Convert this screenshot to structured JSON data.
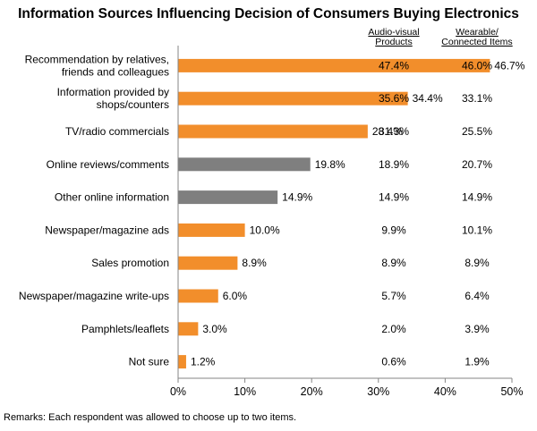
{
  "chart_data": {
    "type": "bar",
    "orientation": "horizontal",
    "title": "Information Sources Influencing Decision of Consumers Buying Electronics",
    "categories": [
      [
        "Recommendation by relatives,",
        "friends and colleagues"
      ],
      [
        "Information provided by",
        "shops/counters"
      ],
      [
        "TV/radio commercials"
      ],
      [
        "Online reviews/comments"
      ],
      [
        "Other online information"
      ],
      [
        "Newspaper/magazine ads"
      ],
      [
        "Sales promotion"
      ],
      [
        "Newspaper/magazine write-ups"
      ],
      [
        "Pamphlets/leaflets"
      ],
      [
        "Not sure"
      ]
    ],
    "values": [
      46.7,
      34.4,
      28.4,
      19.8,
      14.9,
      10.0,
      8.9,
      6.0,
      3.0,
      1.2
    ],
    "value_labels": [
      "46.7%",
      "34.4%",
      "28.4%",
      "19.8%",
      "14.9%",
      "10.0%",
      "8.9%",
      "6.0%",
      "3.0%",
      "1.2%"
    ],
    "bar_colors": [
      "#F28E2B",
      "#F28E2B",
      "#F28E2B",
      "#7F7F7F",
      "#7F7F7F",
      "#F28E2B",
      "#F28E2B",
      "#F28E2B",
      "#F28E2B",
      "#F28E2B"
    ],
    "xlim": [
      0,
      50
    ],
    "xticks": [
      0,
      10,
      20,
      30,
      40,
      50
    ],
    "xtick_labels": [
      "0%",
      "10%",
      "20%",
      "30%",
      "40%",
      "50%"
    ],
    "grid": false,
    "table_columns": [
      {
        "header": [
          "Audio-visual",
          "Products"
        ],
        "values": [
          "47.4%",
          "35.6%",
          "31.3%",
          "18.9%",
          "14.9%",
          "9.9%",
          "8.9%",
          "5.7%",
          "2.0%",
          "0.6%"
        ]
      },
      {
        "header": [
          "Wearable/",
          "Connected Items"
        ],
        "values": [
          "46.0%",
          "33.1%",
          "25.5%",
          "20.7%",
          "14.9%",
          "10.1%",
          "8.9%",
          "6.4%",
          "3.9%",
          "1.9%"
        ]
      }
    ],
    "remark": "Remarks: Each respondent was allowed to choose up to two items."
  }
}
